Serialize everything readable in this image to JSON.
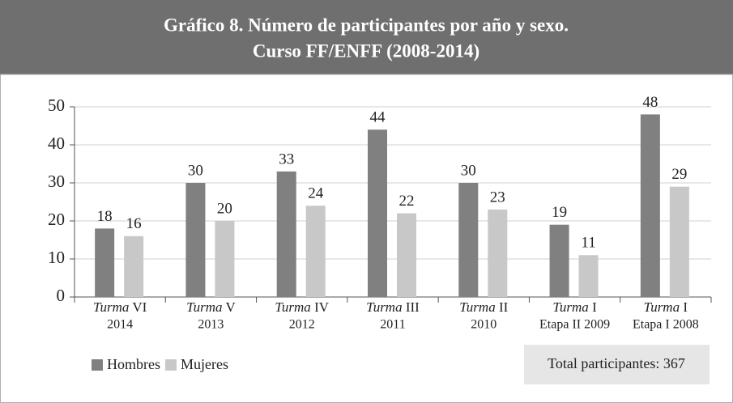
{
  "chart_data": {
    "type": "bar",
    "title": [
      "Gráfico 8. Número de participantes por año y sexo.",
      "Curso FF/ENFF (2008-2014)"
    ],
    "categories": [
      [
        "Turma",
        " VI",
        "2014"
      ],
      [
        "Turma",
        " V",
        "2013"
      ],
      [
        "Turma",
        " IV",
        "2012"
      ],
      [
        "Turma",
        " III",
        "2011"
      ],
      [
        "Turma",
        " II",
        "2010"
      ],
      [
        "Turma",
        " I",
        "Etapa II 2009"
      ],
      [
        "Turma",
        " I",
        "Etapa I 2008"
      ]
    ],
    "series": [
      {
        "name": "Hombres",
        "color": "#808080",
        "values": [
          18,
          30,
          33,
          44,
          30,
          19,
          48
        ]
      },
      {
        "name": "Mujeres",
        "color": "#c8c8c8",
        "values": [
          16,
          20,
          24,
          22,
          23,
          11,
          29
        ]
      }
    ],
    "ylim": [
      0,
      50
    ],
    "yticks": [
      0,
      10,
      20,
      30,
      40,
      50
    ],
    "grid": true,
    "legend": "bottom-left",
    "annotation": "Total participantes: 367"
  }
}
